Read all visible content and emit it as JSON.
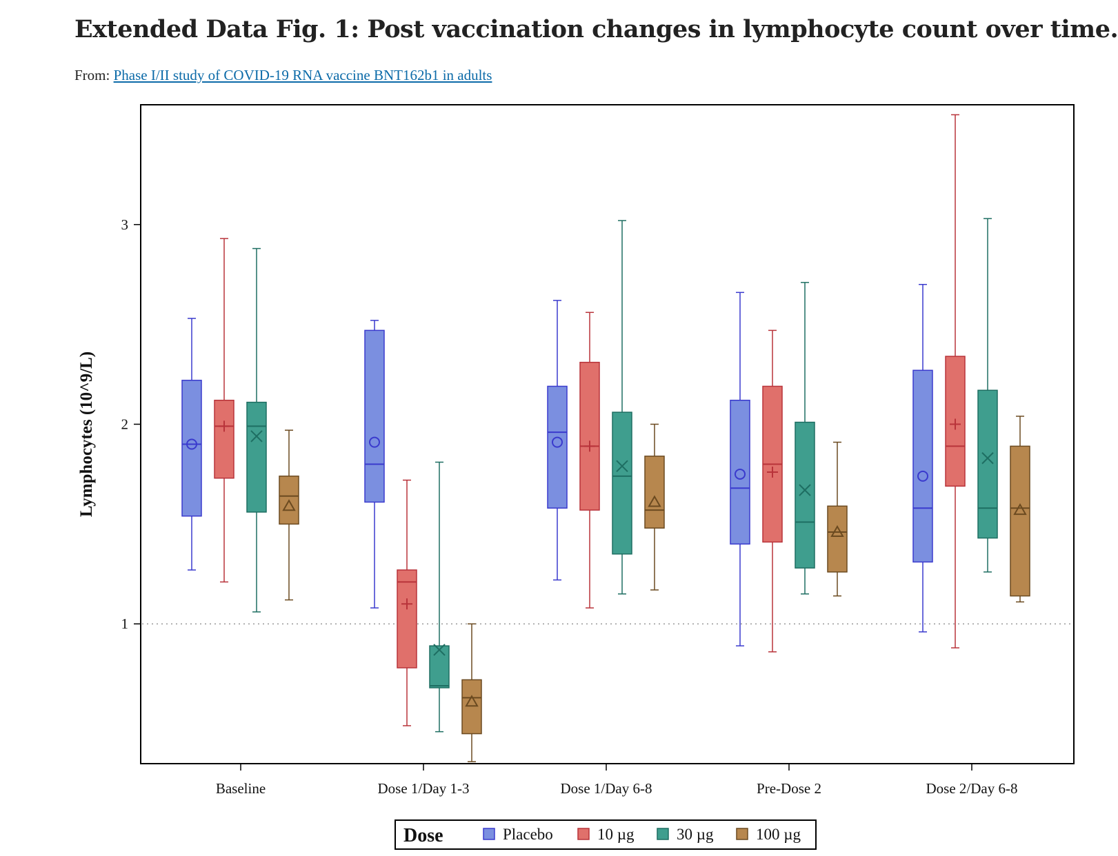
{
  "header": {
    "title": "Extended Data Fig. 1: Post vaccination changes in lymphocyte count over time.",
    "from_label": "From:",
    "from_link": "Phase I/II study of COVID-19 RNA vaccine BNT162b1 in adults"
  },
  "chart_data": {
    "type": "box",
    "title": "",
    "xlabel": "",
    "ylabel": "Lymphocytes (10^9/L)",
    "ylim": [
      0.3,
      3.6
    ],
    "yticks": [
      1,
      2,
      3
    ],
    "reference_line": 1,
    "categories": [
      "Baseline",
      "Dose 1/Day 1-3",
      "Dose 1/Day 6-8",
      "Pre-Dose 2",
      "Dose 2/Day 6-8"
    ],
    "legend": {
      "title": "Dose",
      "position": "bottom"
    },
    "series": [
      {
        "name": "Placebo",
        "color": "#7b8fe0",
        "edge": "#3a3acd",
        "marker": "circle",
        "boxes": [
          {
            "min": 1.27,
            "q1": 1.54,
            "median": 1.9,
            "q3": 2.22,
            "max": 2.53,
            "mean": 1.9
          },
          {
            "min": 1.08,
            "q1": 1.61,
            "median": 1.8,
            "q3": 2.47,
            "max": 2.52,
            "mean": 1.91
          },
          {
            "min": 1.22,
            "q1": 1.58,
            "median": 1.96,
            "q3": 2.19,
            "max": 2.62,
            "mean": 1.91
          },
          {
            "min": 0.89,
            "q1": 1.4,
            "median": 1.68,
            "q3": 2.12,
            "max": 2.66,
            "mean": 1.75
          },
          {
            "min": 0.96,
            "q1": 1.31,
            "median": 1.58,
            "q3": 2.27,
            "max": 2.7,
            "mean": 1.74
          }
        ]
      },
      {
        "name": "10 µg",
        "color": "#e0706b",
        "edge": "#b8333a",
        "marker": "plus",
        "boxes": [
          {
            "min": 1.21,
            "q1": 1.73,
            "median": 1.99,
            "q3": 2.12,
            "max": 2.93,
            "mean": 1.99
          },
          {
            "min": 0.49,
            "q1": 0.78,
            "median": 1.21,
            "q3": 1.27,
            "max": 1.72,
            "mean": 1.1
          },
          {
            "min": 1.08,
            "q1": 1.57,
            "median": 1.89,
            "q3": 2.31,
            "max": 2.56,
            "mean": 1.89
          },
          {
            "min": 0.86,
            "q1": 1.41,
            "median": 1.8,
            "q3": 2.19,
            "max": 2.47,
            "mean": 1.76
          },
          {
            "min": 0.88,
            "q1": 1.69,
            "median": 1.89,
            "q3": 2.34,
            "max": 3.55,
            "mean": 2.0
          }
        ]
      },
      {
        "name": "30 µg",
        "color": "#3f9e8e",
        "edge": "#1e6e62",
        "marker": "x",
        "boxes": [
          {
            "min": 1.06,
            "q1": 1.56,
            "median": 1.99,
            "q3": 2.11,
            "max": 2.88,
            "mean": 1.94
          },
          {
            "min": 0.46,
            "q1": 0.68,
            "median": 0.69,
            "q3": 0.89,
            "max": 1.81,
            "mean": 0.87
          },
          {
            "min": 1.15,
            "q1": 1.35,
            "median": 1.74,
            "q3": 2.06,
            "max": 3.02,
            "mean": 1.79
          },
          {
            "min": 1.15,
            "q1": 1.28,
            "median": 1.51,
            "q3": 2.01,
            "max": 2.71,
            "mean": 1.67
          },
          {
            "min": 1.26,
            "q1": 1.43,
            "median": 1.58,
            "q3": 2.17,
            "max": 3.03,
            "mean": 1.83
          }
        ]
      },
      {
        "name": "100 µg",
        "color": "#b7874e",
        "edge": "#6b4a20",
        "marker": "triangle",
        "boxes": [
          {
            "min": 1.12,
            "q1": 1.5,
            "median": 1.64,
            "q3": 1.74,
            "max": 1.97,
            "mean": 1.59
          },
          {
            "min": 0.31,
            "q1": 0.45,
            "median": 0.63,
            "q3": 0.72,
            "max": 1.0,
            "mean": 0.61
          },
          {
            "min": 1.17,
            "q1": 1.48,
            "median": 1.57,
            "q3": 1.84,
            "max": 2.0,
            "mean": 1.61
          },
          {
            "min": 1.14,
            "q1": 1.26,
            "median": 1.46,
            "q3": 1.59,
            "max": 1.91,
            "mean": 1.46
          },
          {
            "min": 1.11,
            "q1": 1.14,
            "median": 1.58,
            "q3": 1.89,
            "max": 2.04,
            "mean": 1.57
          }
        ]
      }
    ]
  }
}
